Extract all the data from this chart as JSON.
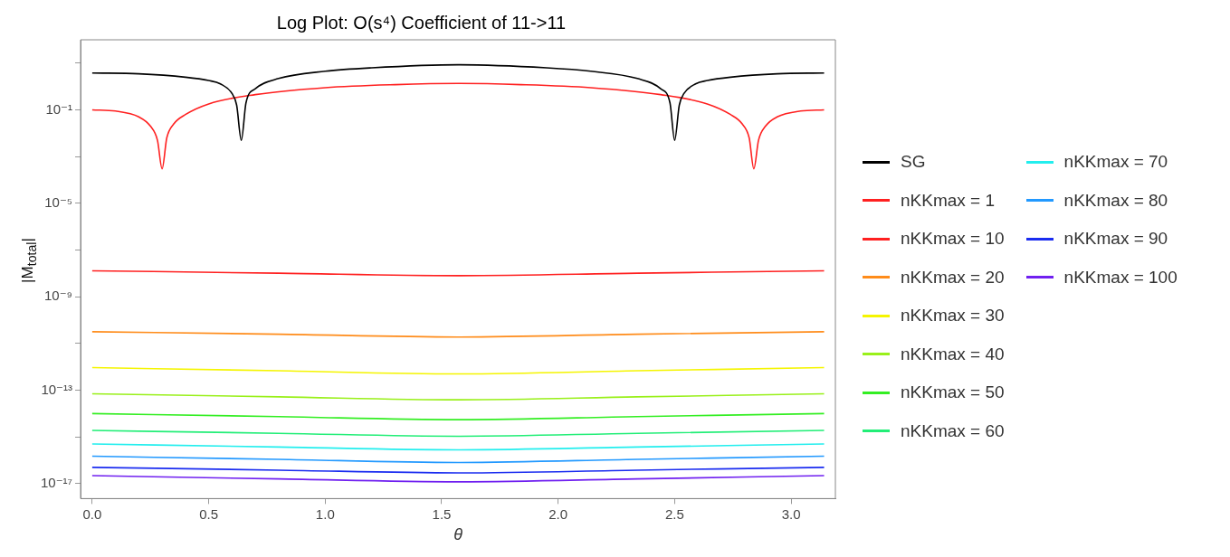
{
  "chart_data": {
    "type": "line",
    "title": "Log Plot: O(s⁴) Coefficient of 11->11",
    "xlabel": "θ",
    "ylabel": "|M$_{total}$|",
    "log": "y",
    "grid": false,
    "legend": "right",
    "marker": "none",
    "line_style": "solid",
    "xlim": [
      -0.05,
      3.19
    ],
    "xticks": [
      {
        "value": 0,
        "label": "0.0"
      },
      {
        "value": 0.5,
        "label": "0.5"
      },
      {
        "value": 1,
        "label": "1.0"
      },
      {
        "value": 1.5,
        "label": "1.5"
      },
      {
        "value": 2,
        "label": "2.0"
      },
      {
        "value": 2.5,
        "label": "2.5"
      },
      {
        "value": 3,
        "label": "3.0"
      }
    ],
    "ylim": [
      2.3e-18,
      100
    ],
    "yticks": [
      {
        "value": 10,
        "label": null
      },
      {
        "value": 0.1,
        "label": "10⁻¹"
      },
      {
        "value": 0.001,
        "label": null
      },
      {
        "value": 1e-05,
        "label": "10⁻⁵"
      },
      {
        "value": 1e-07,
        "label": null
      },
      {
        "value": 1e-09,
        "label": "10⁻⁹"
      },
      {
        "value": 1e-11,
        "label": null
      },
      {
        "value": 1e-13,
        "label": "10⁻¹³"
      },
      {
        "value": 1e-15,
        "label": null
      },
      {
        "value": 1e-17,
        "label": "10⁻¹⁷"
      }
    ],
    "x": [
      0,
      0.8,
      1.5708,
      2.34,
      3.1416
    ],
    "series": [
      {
        "name": "SG",
        "color": "#000000",
        "x": [
          0,
          0.2,
          0.4,
          0.5,
          0.55,
          0.6,
          0.62,
          0.64,
          0.66,
          0.7,
          0.8,
          1.0,
          1.2,
          1.5708,
          1.95,
          2.14,
          2.34,
          2.44,
          2.48,
          2.5,
          2.52,
          2.54,
          2.59,
          2.64,
          2.74,
          2.94,
          3.1416
        ],
        "values": [
          3.8,
          3.5,
          2.5,
          1.8,
          1.3,
          0.5,
          0.16,
          0.005,
          0.2,
          0.8,
          2.2,
          4.5,
          6.3,
          8.5,
          6.3,
          4.5,
          2.2,
          0.8,
          0.2,
          0.005,
          0.16,
          0.5,
          1.3,
          1.8,
          2.5,
          3.5,
          3.8
        ]
      },
      {
        "name": "nKKmax = 1",
        "color": "#ff2020",
        "x": [
          0,
          0.1,
          0.2,
          0.25,
          0.28,
          0.3,
          0.32,
          0.35,
          0.4,
          0.5,
          0.7,
          1.0,
          1.3,
          1.5708,
          1.84,
          2.14,
          2.44,
          2.64,
          2.74,
          2.79,
          2.82,
          2.84,
          2.86,
          2.89,
          2.94,
          3.04,
          3.1416
        ],
        "values": [
          0.1,
          0.089,
          0.05,
          0.02,
          0.005,
          0.0003,
          0.0063,
          0.025,
          0.063,
          0.18,
          0.45,
          0.89,
          1.2,
          1.35,
          1.2,
          0.89,
          0.45,
          0.18,
          0.063,
          0.025,
          0.0063,
          0.0003,
          0.005,
          0.02,
          0.05,
          0.089,
          0.1
        ]
      },
      {
        "name": "nKKmax = 10",
        "color": "#ff2020",
        "values": [
          1.3e-08,
          1.02e-08,
          8e-09,
          1.02e-08,
          1.3e-08
        ]
      },
      {
        "name": "nKKmax = 20",
        "color": "#ff8c1a",
        "values": [
          3.2e-11,
          2.5e-11,
          1.9e-11,
          2.5e-11,
          3.2e-11
        ]
      },
      {
        "name": "nKKmax = 30",
        "color": "#f5f500",
        "values": [
          9.3e-13,
          6.8e-13,
          5e-13,
          6.8e-13,
          9.3e-13
        ]
      },
      {
        "name": "nKKmax = 40",
        "color": "#99f01a",
        "values": [
          7e-14,
          5.2e-14,
          3.9e-14,
          5.2e-14,
          7e-14
        ]
      },
      {
        "name": "nKKmax = 50",
        "color": "#33ee22",
        "values": [
          1e-14,
          7.4e-15,
          5.5e-15,
          7.4e-15,
          1e-14
        ]
      },
      {
        "name": "nKKmax = 60",
        "color": "#22ee77",
        "values": [
          1.9e-15,
          1.43e-15,
          1.07e-15,
          1.43e-15,
          1.9e-15
        ]
      },
      {
        "name": "nKKmax = 70",
        "color": "#22eeee",
        "values": [
          5e-16,
          3.7e-16,
          2.8e-16,
          3.7e-16,
          5e-16
        ]
      },
      {
        "name": "nKKmax = 80",
        "color": "#2299ff",
        "values": [
          1.5e-16,
          1.1e-16,
          8.1e-17,
          1.1e-16,
          1.5e-16
        ]
      },
      {
        "name": "nKKmax = 90",
        "color": "#1a2cf0",
        "values": [
          5e-17,
          3.8e-17,
          2.9e-17,
          3.8e-17,
          5e-17
        ]
      },
      {
        "name": "nKKmax = 100",
        "color": "#7020f0",
        "values": [
          2.2e-17,
          1.6e-17,
          1.2e-17,
          1.6e-17,
          2.2e-17
        ]
      }
    ]
  }
}
